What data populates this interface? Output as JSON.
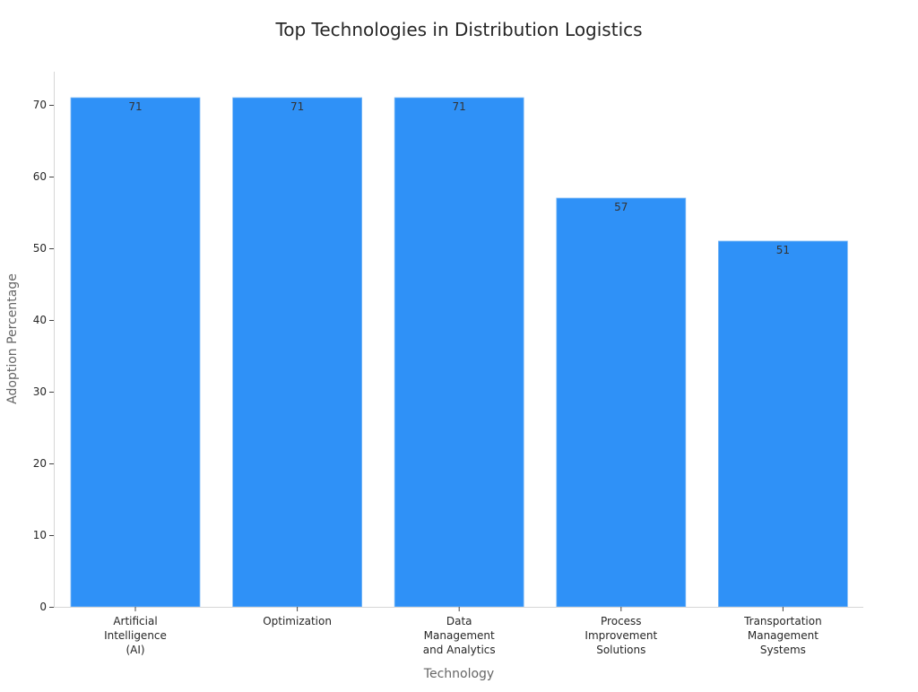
{
  "chart_data": {
    "type": "bar",
    "title": "Top Technologies in Distribution Logistics",
    "xlabel": "Technology",
    "ylabel": "Adoption Percentage",
    "categories": [
      [
        "Artificial",
        "Intelligence",
        "(AI)"
      ],
      [
        "Optimization"
      ],
      [
        "Data",
        "Management",
        "and Analytics"
      ],
      [
        "Process",
        "Improvement",
        "Solutions"
      ],
      [
        "Transportation",
        "Management",
        "Systems"
      ]
    ],
    "values": [
      71,
      71,
      71,
      57,
      51
    ],
    "ylim": [
      0,
      74.5
    ],
    "yticks": [
      0,
      10,
      20,
      30,
      40,
      50,
      60,
      70
    ],
    "grid": false,
    "bar_color": "#2f91f7"
  }
}
